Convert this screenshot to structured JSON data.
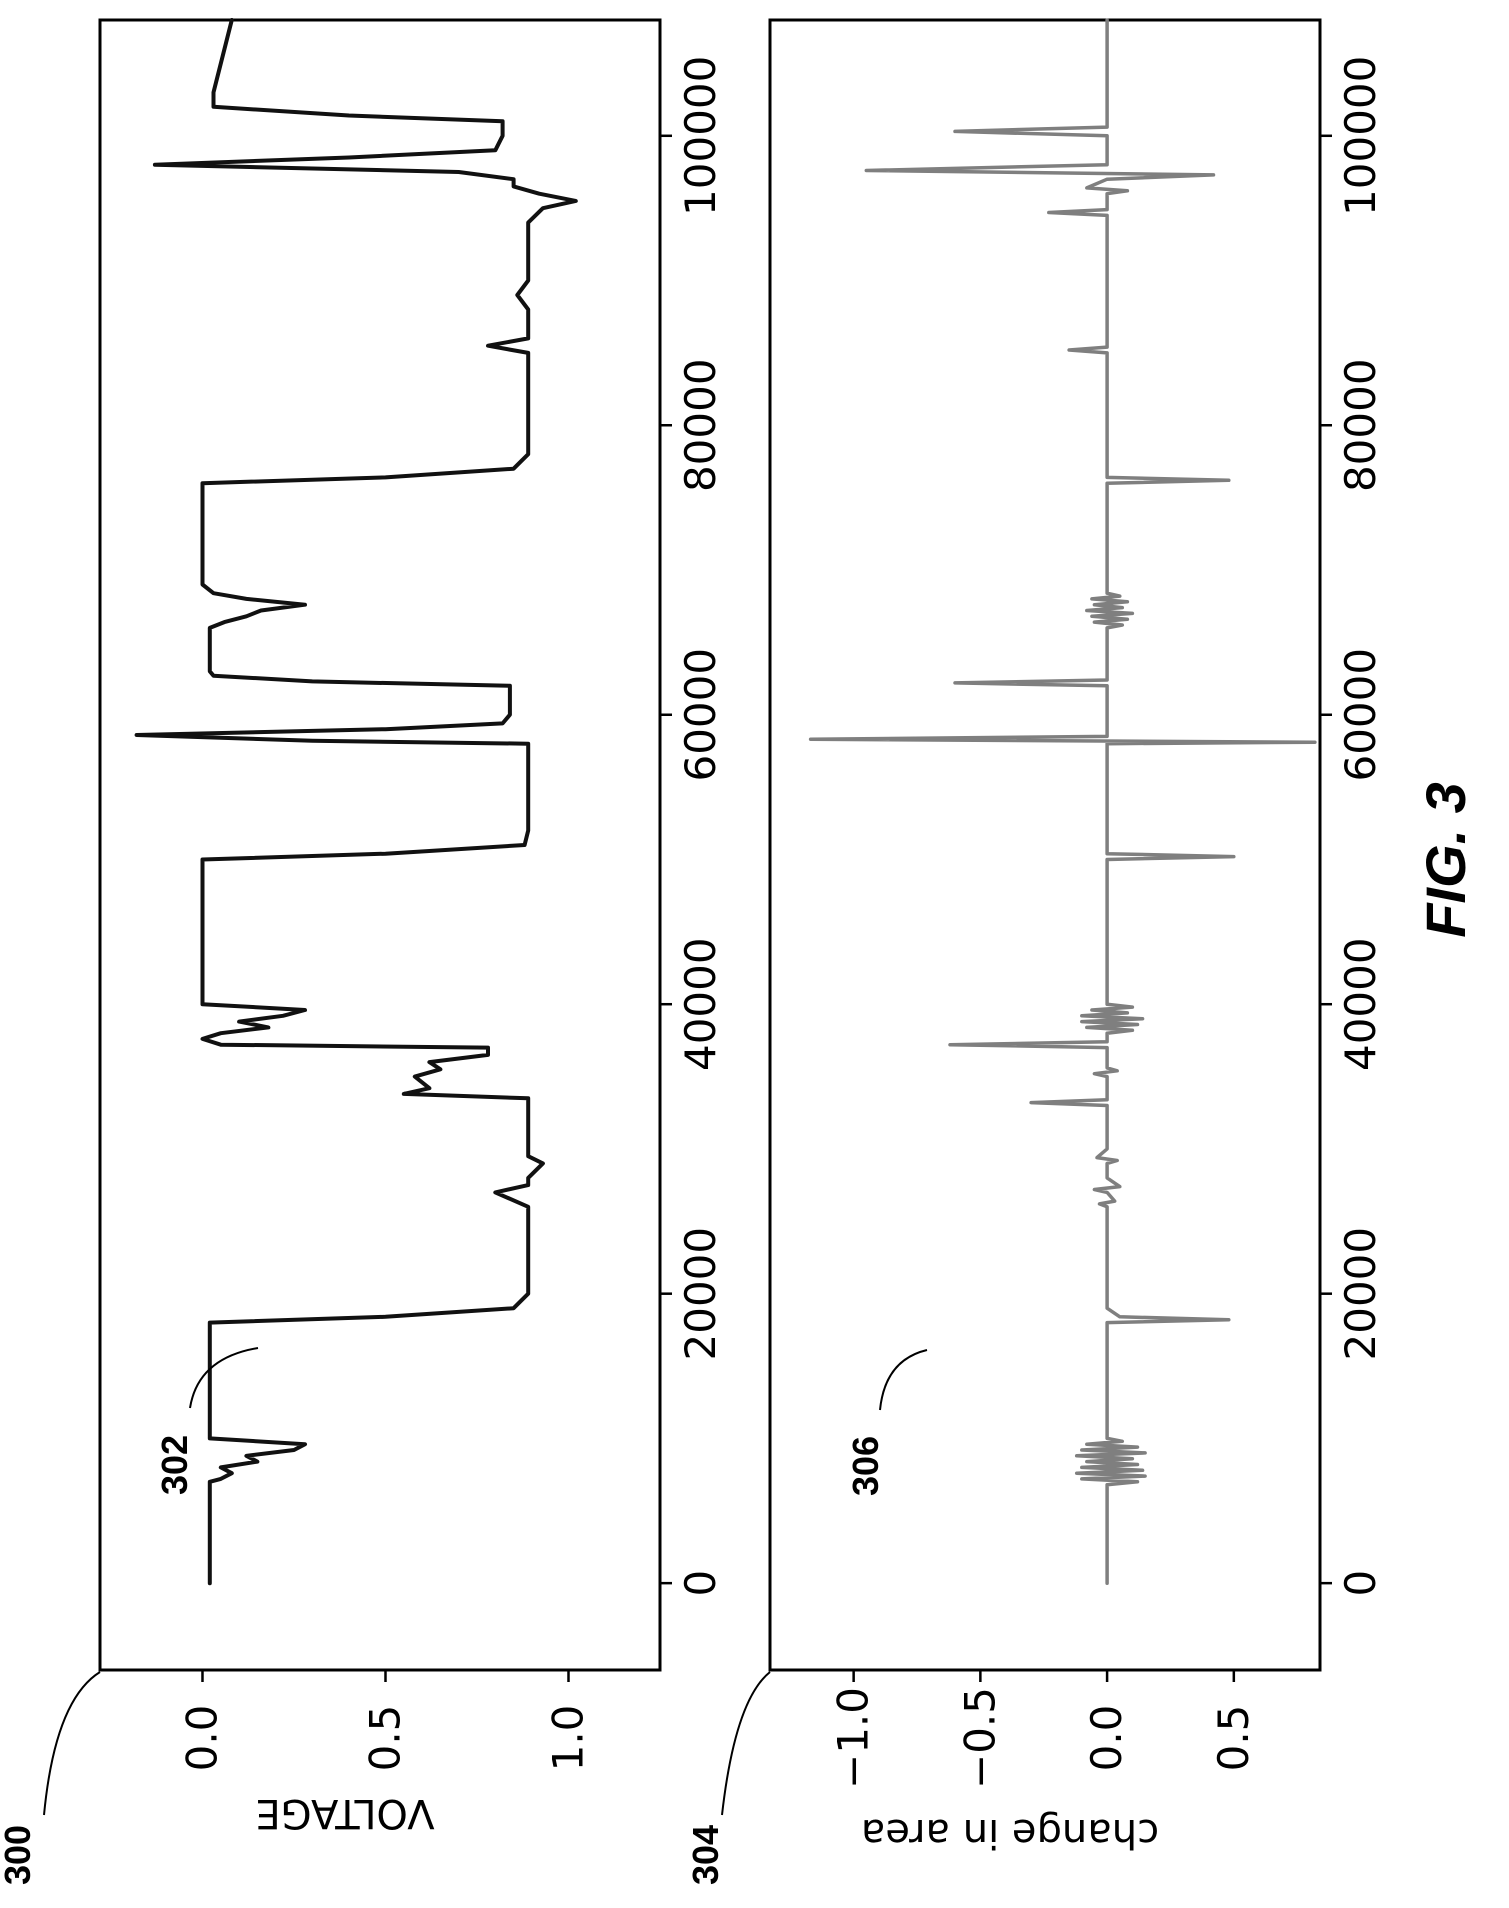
{
  "figure_label": "FIG. 3",
  "chart_data": [
    {
      "type": "line",
      "ref": "300",
      "series_ref": "302",
      "ylabel": "VOLTAGE",
      "xlabel": "",
      "xlim": [
        -6000,
        108000
      ],
      "ylim": [
        -0.28,
        1.25
      ],
      "x_ticks": [
        0,
        20000,
        40000,
        60000,
        80000,
        100000
      ],
      "x_tick_labels": [
        "0",
        "20000",
        "40000",
        "60000",
        "80000",
        "100000"
      ],
      "y_ticks": [
        0.0,
        0.5,
        1.0
      ],
      "y_tick_labels": [
        "0.0",
        "0.5",
        "1.0"
      ],
      "line_color": "#111111",
      "series": [
        {
          "x": [
            0,
            7000,
            7200,
            7600,
            8000,
            8400,
            8800,
            9200,
            9600,
            10000,
            18000,
            18400,
            19000,
            20000,
            26000,
            27000,
            27500,
            28000,
            29000,
            29500,
            30000,
            33500,
            33800,
            34200,
            35000,
            35500,
            36000,
            36500,
            37000,
            37200,
            37600,
            38000,
            38400,
            38800,
            39200,
            39600,
            40000,
            40400,
            41000,
            50000,
            50400,
            51000,
            52000,
            58000,
            58200,
            58600,
            59000,
            59400,
            60000,
            62000,
            62300,
            62700,
            63000,
            66000,
            66400,
            66800,
            67200,
            67600,
            68000,
            68400,
            69000,
            76000,
            76400,
            77000,
            78000,
            85000,
            85500,
            86000,
            88000,
            89000,
            90000,
            94000,
            95000,
            95500,
            96000,
            96500,
            97000,
            97500,
            98000,
            98500,
            99000,
            100000,
            101000,
            101400,
            102000,
            103000,
            108000
          ],
          "y": [
            0.02,
            0.02,
            0.05,
            0.08,
            0.05,
            0.15,
            0.12,
            0.25,
            0.28,
            0.02,
            0.02,
            0.5,
            0.85,
            0.89,
            0.89,
            0.8,
            0.89,
            0.89,
            0.93,
            0.89,
            0.89,
            0.89,
            0.55,
            0.62,
            0.58,
            0.65,
            0.62,
            0.78,
            0.78,
            0.05,
            0.0,
            0.05,
            0.18,
            0.1,
            0.22,
            0.28,
            0.0,
            0.0,
            0.0,
            0.0,
            0.5,
            0.88,
            0.89,
            0.89,
            0.3,
            -0.18,
            0.5,
            0.82,
            0.84,
            0.84,
            0.3,
            0.03,
            0.02,
            0.02,
            0.06,
            0.12,
            0.16,
            0.28,
            0.12,
            0.03,
            0.0,
            0.0,
            0.5,
            0.85,
            0.89,
            0.89,
            0.78,
            0.89,
            0.89,
            0.86,
            0.89,
            0.89,
            0.93,
            1.02,
            0.92,
            0.85,
            0.85,
            0.7,
            -0.13,
            0.4,
            0.8,
            0.82,
            0.82,
            0.4,
            0.03,
            0.03,
            0.08
          ]
        }
      ]
    },
    {
      "type": "line",
      "ref": "304",
      "series_ref": "306",
      "ylabel": "change in area",
      "xlabel": "",
      "xlim": [
        -6000,
        108000
      ],
      "ylim": [
        -1.33,
        0.84
      ],
      "x_ticks": [
        0,
        20000,
        40000,
        60000,
        80000,
        100000
      ],
      "x_tick_labels": [
        "0",
        "20000",
        "40000",
        "60000",
        "80000",
        "100000"
      ],
      "y_ticks": [
        0.5,
        0.0,
        -0.5,
        -1.0
      ],
      "y_tick_labels": [
        "0.5",
        "0.0",
        "−0.5",
        "−1.0"
      ],
      "line_color": "#7f7f7f",
      "series": [
        {
          "x": [
            0,
            6800,
            7000,
            7200,
            7400,
            7600,
            7800,
            8000,
            8200,
            8400,
            8600,
            8800,
            9000,
            9200,
            9400,
            9600,
            9800,
            10000,
            18000,
            18200,
            18400,
            19000,
            26000,
            26200,
            26400,
            27000,
            27200,
            27400,
            28000,
            29000,
            29200,
            29400,
            30000,
            33000,
            33200,
            33400,
            34000,
            35000,
            35200,
            35400,
            35600,
            36000,
            37000,
            37200,
            37400,
            38000,
            38200,
            38400,
            38600,
            38800,
            39000,
            39200,
            39400,
            39600,
            39800,
            40000,
            40200,
            40400,
            41000,
            50000,
            50200,
            50400,
            51000,
            58000,
            58100,
            58300,
            58500,
            59000,
            62000,
            62200,
            62400,
            63000,
            66000,
            66200,
            66400,
            66600,
            66800,
            67000,
            67200,
            67400,
            67600,
            67800,
            68000,
            68200,
            68400,
            69000,
            76000,
            76200,
            76400,
            77000,
            85000,
            85200,
            85400,
            86000,
            94500,
            94700,
            94900,
            95500,
            96000,
            96200,
            96400,
            97000,
            97300,
            97600,
            98000,
            99000,
            100000,
            100300,
            100600,
            101000,
            108000
          ],
          "y": [
            0.0,
            0.0,
            0.12,
            -0.1,
            0.15,
            -0.12,
            0.14,
            -0.1,
            0.12,
            -0.08,
            0.1,
            -0.12,
            0.15,
            -0.1,
            0.12,
            -0.08,
            0.06,
            0.0,
            0.0,
            0.48,
            0.05,
            0.0,
            0.0,
            -0.03,
            0.03,
            0.0,
            -0.05,
            0.05,
            0.0,
            0.0,
            0.04,
            -0.04,
            0.0,
            0.0,
            -0.3,
            0.0,
            0.0,
            0.0,
            -0.05,
            0.04,
            0.0,
            0.0,
            0.0,
            -0.62,
            0.0,
            0.0,
            0.1,
            -0.08,
            0.12,
            -0.1,
            0.14,
            -0.1,
            0.08,
            -0.06,
            0.1,
            0.0,
            0.0,
            0.0,
            0.0,
            0.0,
            0.5,
            0.0,
            0.0,
            0.0,
            0.82,
            -1.17,
            0.0,
            0.0,
            0.0,
            -0.6,
            0.0,
            0.0,
            0.0,
            0.06,
            -0.05,
            0.08,
            -0.06,
            0.1,
            -0.08,
            0.06,
            -0.05,
            0.08,
            -0.06,
            0.05,
            0.0,
            0.0,
            0.0,
            0.48,
            0.0,
            0.0,
            0.0,
            -0.15,
            0.0,
            0.0,
            0.0,
            -0.23,
            0.0,
            0.0,
            0.0,
            0.08,
            -0.08,
            0.0,
            0.42,
            -0.95,
            0.0,
            0.0,
            0.0,
            -0.6,
            0.0,
            0.0,
            0.0
          ]
        }
      ]
    }
  ]
}
